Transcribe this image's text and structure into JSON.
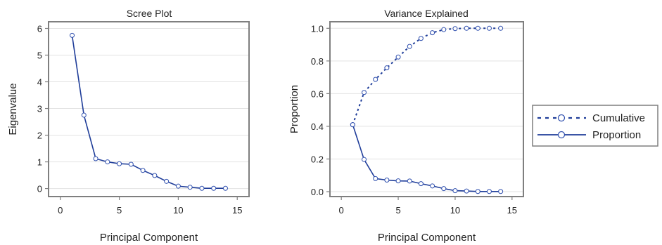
{
  "colors": {
    "series": "#1f3d99",
    "marker": "#2f4fae",
    "frame": "#7f7f7f",
    "grid": "#e2e2e2",
    "text": "#222222"
  },
  "chart_data": [
    {
      "type": "line",
      "title": "Scree Plot",
      "xlabel": "Principal Component",
      "ylabel": "Eigenvalue",
      "xlim": [
        -1,
        16
      ],
      "ylim": [
        -0.3,
        6.25
      ],
      "xticks": [
        0,
        5,
        10,
        15
      ],
      "yticks": [
        0,
        1,
        2,
        3,
        4,
        5,
        6
      ],
      "grid": true,
      "x": [
        1,
        2,
        3,
        4,
        5,
        6,
        7,
        8,
        9,
        10,
        11,
        12,
        13,
        14
      ],
      "series": [
        {
          "values": [
            5.74,
            2.75,
            1.12,
            1.0,
            0.93,
            0.91,
            0.68,
            0.49,
            0.27,
            0.09,
            0.05,
            0.01,
            0.01,
            0.01
          ],
          "style": "solid"
        }
      ]
    },
    {
      "type": "line",
      "title": "Variance Explained",
      "xlabel": "Principal Component",
      "ylabel": "Proportion",
      "xlim": [
        -1,
        16
      ],
      "ylim": [
        -0.03,
        1.04
      ],
      "xticks": [
        0,
        5,
        10,
        15
      ],
      "yticks": [
        0.0,
        0.2,
        0.4,
        0.6,
        0.8,
        1.0
      ],
      "grid": true,
      "legend": "right",
      "x": [
        1,
        2,
        3,
        4,
        5,
        6,
        7,
        8,
        9,
        10,
        11,
        12,
        13,
        14
      ],
      "series": [
        {
          "name": "Cumulative",
          "style": "dashed",
          "values": [
            0.41,
            0.607,
            0.687,
            0.758,
            0.824,
            0.889,
            0.938,
            0.973,
            0.992,
            0.998,
            1.0,
            1.0,
            1.0,
            1.0
          ]
        },
        {
          "name": "Proportion",
          "style": "solid",
          "values": [
            0.41,
            0.197,
            0.08,
            0.071,
            0.066,
            0.065,
            0.049,
            0.035,
            0.019,
            0.006,
            0.004,
            0.001,
            0.001,
            0.001
          ]
        }
      ]
    }
  ]
}
